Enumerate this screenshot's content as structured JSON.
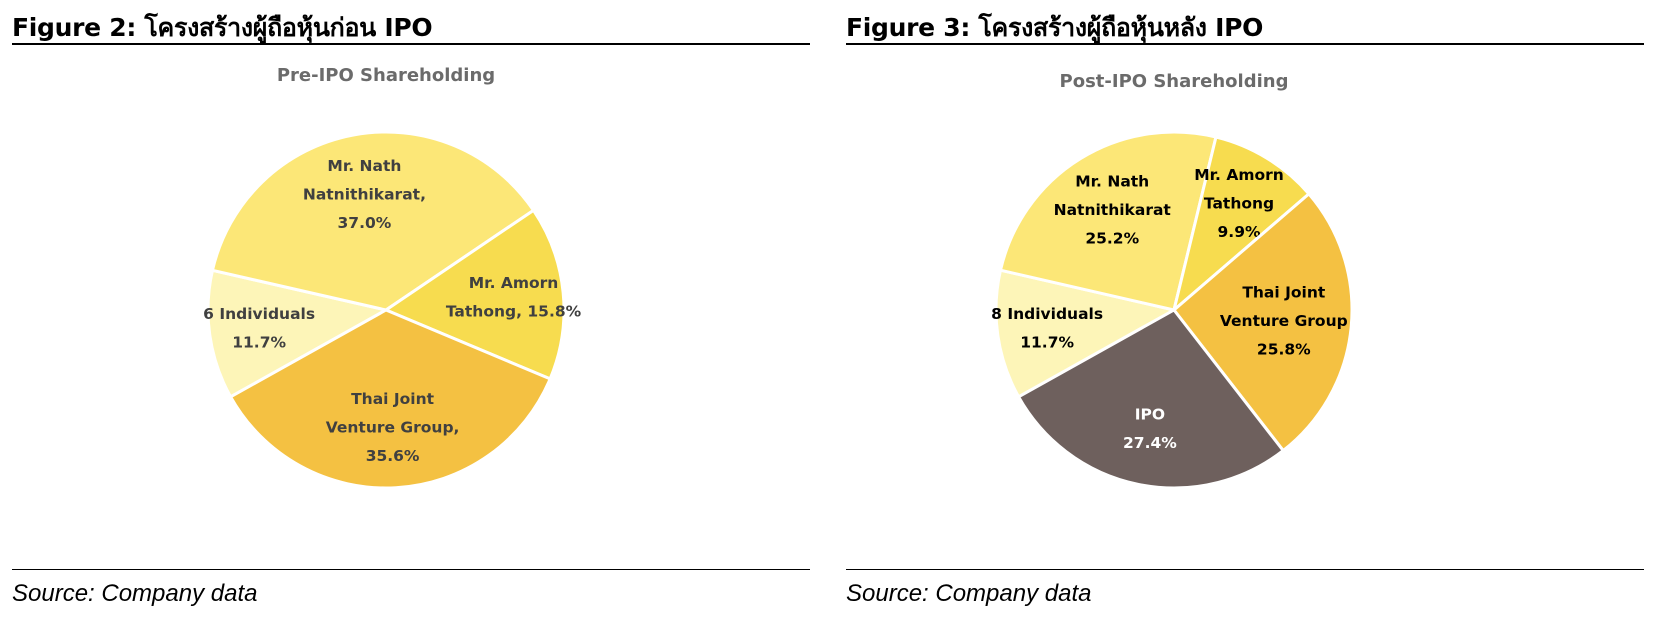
{
  "left": {
    "figure_title": "Figure 2: โครงสร้างผู้ถือหุ้นก่อน IPO",
    "source": "Source: Company data"
  },
  "right": {
    "figure_title": "Figure 3: โครงสร้างผู้ถือหุ้นหลัง IPO",
    "source": "Source: Company data"
  },
  "chart_data": [
    {
      "type": "pie",
      "title": "Pre-IPO Shareholding",
      "slices": [
        {
          "label_lines": [
            "6 Individuals",
            "11.7%"
          ],
          "value": 11.7,
          "color": "#FDF5B8",
          "label_color": "#404040"
        },
        {
          "label_lines": [
            "Mr. Nath",
            "Natnithikarat,",
            "37.0%"
          ],
          "value": 37.0,
          "color": "#FCE777",
          "label_color": "#404040"
        },
        {
          "label_lines": [
            "Mr. Amorn",
            "Tathong, 15.8%"
          ],
          "value": 15.8,
          "color": "#F7DC4F",
          "label_color": "#404040"
        },
        {
          "label_lines": [
            "Thai Joint",
            "Venture Group,",
            "35.6%"
          ],
          "value": 35.6,
          "color": "#F4C142",
          "label_color": "#404040"
        }
      ]
    },
    {
      "type": "pie",
      "title": "Post-IPO Shareholding",
      "slices": [
        {
          "label_lines": [
            "8 Individuals",
            "11.7%"
          ],
          "value": 11.7,
          "color": "#FDF5B8",
          "label_color": "#000000"
        },
        {
          "label_lines": [
            "Mr. Nath",
            "Natnithikarat",
            "25.2%"
          ],
          "value": 25.2,
          "color": "#FCE777",
          "label_color": "#000000"
        },
        {
          "label_lines": [
            "Mr. Amorn",
            "Tathong",
            "9.9%"
          ],
          "value": 9.9,
          "color": "#F7DC4F",
          "label_color": "#000000"
        },
        {
          "label_lines": [
            "Thai Joint",
            "Venture Group",
            "25.8%"
          ],
          "value": 25.8,
          "color": "#F4C142",
          "label_color": "#000000"
        },
        {
          "label_lines": [
            "IPO",
            "27.4%"
          ],
          "value": 27.4,
          "color": "#6E605D",
          "label_color": "#FFFFFF"
        }
      ]
    }
  ]
}
